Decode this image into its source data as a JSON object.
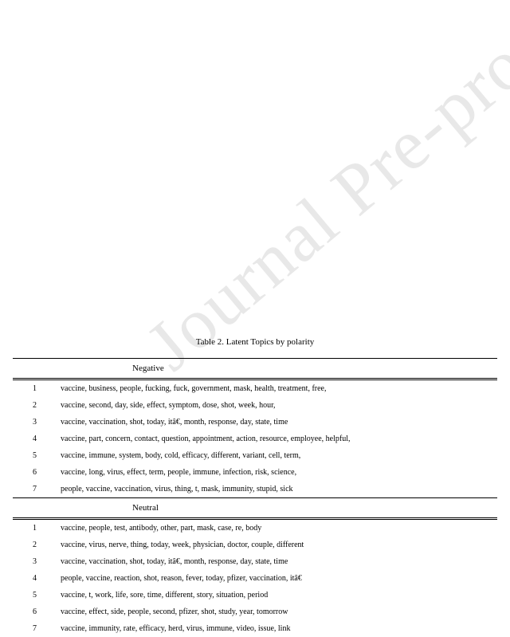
{
  "watermark": "Journal Pre-proof",
  "caption": "Table 2. Latent Topics by polarity",
  "sections": [
    {
      "label": "Negative",
      "rows": [
        {
          "n": "1",
          "words": "vaccine, business, people, fucking, fuck, government, mask, health, treatment, free,"
        },
        {
          "n": "2",
          "words": "vaccine, second, day, side, effect, symptom, dose, shot, week, hour,"
        },
        {
          "n": "3",
          "words": "vaccine, vaccination, shot, today, itâ€, month, response, day, state, time"
        },
        {
          "n": "4",
          "words": "vaccine, part, concern, contact, question, appointment, action, resource, employee, helpful,"
        },
        {
          "n": "5",
          "words": "vaccine, immune, system, body, cold, efficacy, different, variant, cell, term,"
        },
        {
          "n": "6",
          "words": "vaccine, long, virus, effect, term, people, immune, infection, risk, science,"
        },
        {
          "n": "7",
          "words": "people, vaccine, vaccination, virus, thing, t, mask, immunity, stupid, sick"
        }
      ]
    },
    {
      "label": "Neutral",
      "rows": [
        {
          "n": "1",
          "words": "vaccine, people, test, antibody, other, part, mask, case, re, body"
        },
        {
          "n": "2",
          "words": "vaccine, virus, nerve, thing, today, week, physician, doctor, couple, different"
        },
        {
          "n": "3",
          "words": "vaccine, vaccination, shot, today, itâ€, month, response, day, state, time"
        },
        {
          "n": "4",
          "words": "people, vaccine, reaction, shot, reason, fever, today, pfizer, vaccination, itâ€"
        },
        {
          "n": "5",
          "words": "vaccine, t, work, life, sore, time, different, story, situation, period"
        },
        {
          "n": "6",
          "words": "vaccine, effect, side, people, second, pfizer, shot, study, year, tomorrow"
        },
        {
          "n": "7",
          "words": "vaccine, immunity, rate, efficacy, herd, virus, immune, video, issue, link"
        }
      ]
    }
  ]
}
